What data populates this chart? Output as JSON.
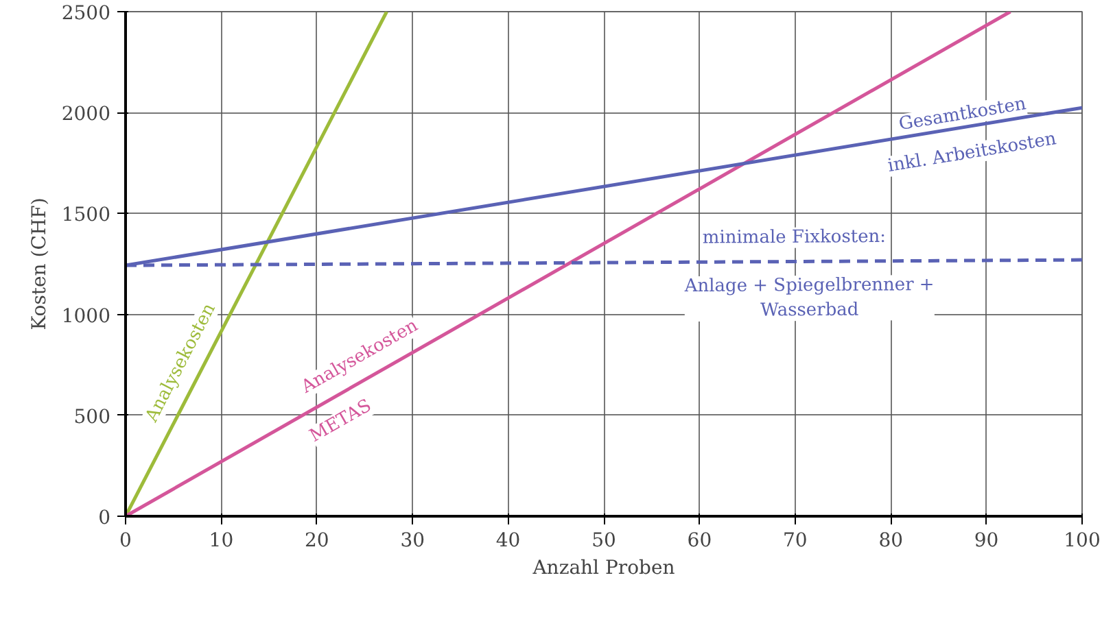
{
  "chart_data": {
    "type": "line",
    "xlabel": "Anzahl Proben",
    "ylabel": "Kosten (CHF)",
    "xlim": [
      0,
      100
    ],
    "ylim": [
      0,
      2500
    ],
    "xticks": [
      0,
      10,
      20,
      30,
      40,
      50,
      60,
      70,
      80,
      90,
      100
    ],
    "yticks": [
      0,
      500,
      1000,
      1500,
      2000,
      2500
    ],
    "grid": true,
    "marker": "none",
    "series": [
      {
        "color": "#9dbb3a",
        "x": [
          0,
          27.3
        ],
        "values": [
          0,
          2500
        ],
        "line_style": "solid"
      },
      {
        "color": "#d4569a",
        "x": [
          0,
          92.5
        ],
        "values": [
          0,
          2500
        ],
        "line_style": "solid"
      },
      {
        "color": "#5a62b5",
        "x": [
          0,
          100
        ],
        "values": [
          1243,
          2024
        ],
        "line_style": "solid"
      },
      {
        "color": "#5a62b5",
        "x": [
          0,
          100
        ],
        "values": [
          1243,
          1270
        ],
        "line_style": "dashed"
      }
    ],
    "annotations": [
      "Analysekosten",
      "Analysekosten",
      "METAS",
      "Gesamtkosten",
      "inkl. Arbeitskosten",
      "minimale Fixkosten:",
      "Anlage + Spiegelbrenner +\nWasserbad"
    ]
  }
}
